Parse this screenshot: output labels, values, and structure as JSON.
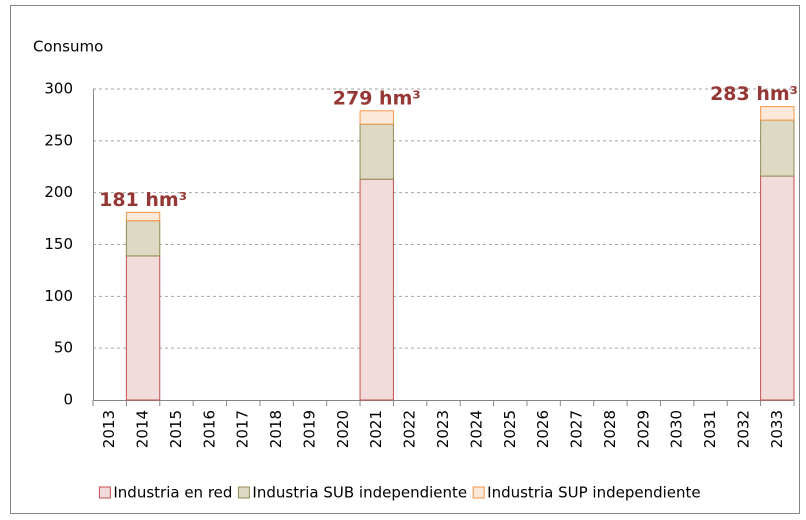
{
  "chart_data": {
    "type": "stacked_bar",
    "title": "Consumo",
    "categories": [
      "2013",
      "2014",
      "2015",
      "2016",
      "2017",
      "2018",
      "2019",
      "2020",
      "2021",
      "2022",
      "2023",
      "2024",
      "2025",
      "2026",
      "2027",
      "2028",
      "2029",
      "2030",
      "2031",
      "2032",
      "2033"
    ],
    "series": [
      {
        "name": "Industria en red",
        "color": "#f2dcdb",
        "stroke": "#c0504d",
        "values": [
          null,
          139,
          null,
          null,
          null,
          null,
          null,
          null,
          213,
          null,
          null,
          null,
          null,
          null,
          null,
          null,
          null,
          null,
          null,
          null,
          216
        ]
      },
      {
        "name": "Industria SUB independiente",
        "color": "#ddd9c3",
        "stroke": "#948a54",
        "values": [
          null,
          34,
          null,
          null,
          null,
          null,
          null,
          null,
          53,
          null,
          null,
          null,
          null,
          null,
          null,
          null,
          null,
          null,
          null,
          null,
          54
        ]
      },
      {
        "name": "Industria SUP independiente",
        "color": "#fde9d9",
        "stroke": "#f79646",
        "values": [
          null,
          8,
          null,
          null,
          null,
          null,
          null,
          null,
          13,
          null,
          null,
          null,
          null,
          null,
          null,
          null,
          null,
          null,
          null,
          null,
          13
        ]
      }
    ],
    "annotations": [
      {
        "x": "2014",
        "text": "181 hm³"
      },
      {
        "x": "2021",
        "text": "279 hm³"
      },
      {
        "x": "2033",
        "text": "283 hm³"
      }
    ],
    "annotation_color": "#953735",
    "ylim": [
      0,
      300
    ],
    "yticks": [
      0,
      50,
      100,
      150,
      200,
      250,
      300
    ],
    "grid": true,
    "legend": "bottom"
  }
}
